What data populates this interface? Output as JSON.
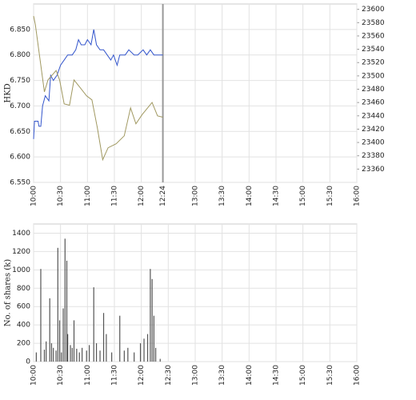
{
  "chart_data": [
    {
      "type": "line",
      "ylabel": "HKD",
      "grid": true,
      "xlim": [
        "10:00",
        "16:00"
      ],
      "xticks": [
        "10:00",
        "10:30",
        "11:00",
        "11:30",
        "12:00",
        "12:24",
        "13:00",
        "13:30",
        "14:00",
        "14:30",
        "15:00",
        "15:30",
        "16:00"
      ],
      "marker_x": "12:24",
      "ylim": [
        6.55,
        6.9
      ],
      "yticks": [
        {
          "value": 6.55,
          "label": "6.550"
        },
        {
          "value": 6.6,
          "label": "6.600"
        },
        {
          "value": 6.65,
          "label": "6.650"
        },
        {
          "value": 6.7,
          "label": "6.700"
        },
        {
          "value": 6.75,
          "label": "6.750"
        },
        {
          "value": 6.8,
          "label": "6.800"
        },
        {
          "value": 6.85,
          "label": "6.850"
        }
      ],
      "y2lim": [
        23340,
        23608
      ],
      "y2ticks": [
        23360,
        23380,
        23400,
        23420,
        23440,
        23460,
        23480,
        23500,
        23520,
        23540,
        23560,
        23580,
        23600
      ],
      "series": [
        {
          "color": "#3355cc",
          "x": [
            "10:00",
            "10:01",
            "10:05",
            "10:06",
            "10:08",
            "10:10",
            "10:13",
            "10:17",
            "10:19",
            "10:22",
            "10:26",
            "10:30",
            "10:34",
            "10:38",
            "10:43",
            "10:47",
            "10:50",
            "10:53",
            "10:57",
            "11:00",
            "11:04",
            "11:07",
            "11:10",
            "11:14",
            "11:18",
            "11:22",
            "11:26",
            "11:29",
            "11:33",
            "11:36",
            "11:42",
            "11:46",
            "11:52",
            "11:56",
            "12:02",
            "12:06",
            "12:10",
            "12:14",
            "12:24"
          ],
          "values": [
            6.635,
            6.67,
            6.67,
            6.66,
            6.66,
            6.7,
            6.72,
            6.71,
            6.76,
            6.75,
            6.76,
            6.78,
            6.79,
            6.8,
            6.8,
            6.81,
            6.83,
            6.82,
            6.82,
            6.83,
            6.82,
            6.85,
            6.82,
            6.81,
            6.81,
            6.8,
            6.79,
            6.8,
            6.78,
            6.8,
            6.8,
            6.81,
            6.8,
            6.8,
            6.81,
            6.8,
            6.81,
            6.8,
            6.8
          ]
        },
        {
          "color": "#a09860",
          "axis": "y2",
          "x": [
            "10:00",
            "10:02",
            "10:12",
            "10:16",
            "10:25",
            "10:29",
            "10:34",
            "10:40",
            "10:45",
            "10:52",
            "10:59",
            "11:05",
            "11:11",
            "11:17",
            "11:23",
            "11:32",
            "11:41",
            "11:48",
            "11:54",
            "12:01",
            "12:12",
            "12:18",
            "12:24"
          ],
          "values": [
            23590,
            23577,
            23476,
            23494,
            23508,
            23494,
            23458,
            23456,
            23494,
            23482,
            23470,
            23464,
            23422,
            23374,
            23392,
            23398,
            23410,
            23452,
            23428,
            23442,
            23460,
            23440,
            23438
          ]
        }
      ]
    },
    {
      "type": "bar",
      "ylabel": "No. of shares (k)",
      "grid": true,
      "color": "#555555",
      "xlim": [
        "10:00",
        "16:00"
      ],
      "xticks": [
        "10:00",
        "10:30",
        "11:00",
        "11:30",
        "12:00",
        "12:30",
        "13:00",
        "13:30",
        "14:00",
        "14:30",
        "15:00",
        "15:30",
        "16:00"
      ],
      "ylim": [
        0,
        1500
      ],
      "yticks": [
        0,
        200,
        400,
        600,
        800,
        1000,
        1200,
        1400
      ],
      "x": [
        "10:03",
        "10:08",
        "10:12",
        "10:14",
        "10:18",
        "10:20",
        "10:22",
        "10:25",
        "10:27",
        "10:29",
        "10:31",
        "10:33",
        "10:35",
        "10:37",
        "10:38",
        "10:41",
        "10:43",
        "10:45",
        "10:48",
        "10:51",
        "10:54",
        "10:59",
        "11:02",
        "11:07",
        "11:10",
        "11:14",
        "11:18",
        "11:21",
        "11:27",
        "11:36",
        "11:41",
        "11:45",
        "11:52",
        "11:59",
        "12:03",
        "12:07",
        "12:10",
        "12:12",
        "12:14",
        "12:16",
        "12:21"
      ],
      "values": [
        100,
        1010,
        130,
        220,
        690,
        200,
        150,
        120,
        1240,
        450,
        100,
        580,
        1340,
        1100,
        300,
        180,
        150,
        450,
        140,
        100,
        150,
        120,
        180,
        810,
        200,
        120,
        530,
        300,
        100,
        500,
        120,
        150,
        100,
        200,
        250,
        300,
        1010,
        900,
        500,
        150,
        30
      ]
    }
  ]
}
